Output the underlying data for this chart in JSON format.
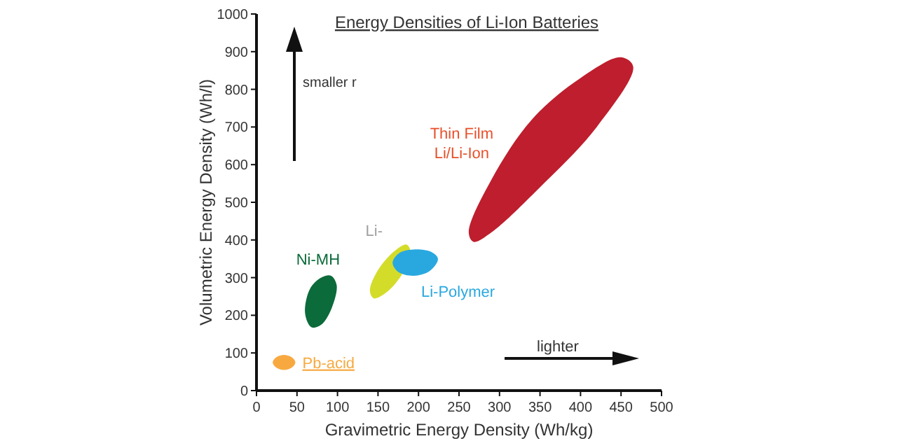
{
  "chart_data": {
    "type": "area",
    "title": "Energy Densities of Li-Ion Batteries",
    "xlabel": "Gravimetric Energy Density (Wh/kg)",
    "ylabel": "Volumetric Energy Density (Wh/l)",
    "xlim": [
      0,
      500
    ],
    "xticks": [
      0,
      50,
      100,
      150,
      200,
      250,
      300,
      350,
      400,
      450,
      500
    ],
    "ylim": [
      0,
      1000
    ],
    "yticks": [
      0,
      100,
      200,
      300,
      400,
      500,
      600,
      700,
      800,
      900,
      1000
    ],
    "grid": false,
    "series": [
      {
        "name": "Pb-acid",
        "color": "#f7a940",
        "x": [
          20,
          24,
          34,
          44,
          48,
          44,
          34,
          24
        ],
        "values": [
          75,
          88,
          95,
          88,
          75,
          62,
          55,
          62
        ]
      },
      {
        "name": "Ni-MH",
        "color": "#0b6b3a",
        "x": [
          60,
          66,
          80,
          92,
          99,
          93,
          80,
          68
        ],
        "values": [
          205,
          270,
          300,
          305,
          280,
          220,
          175,
          168
        ]
      },
      {
        "name": "Li-",
        "color": "#d4dc2a",
        "x": [
          140,
          150,
          170,
          185,
          190,
          180,
          160,
          145
        ],
        "values": [
          265,
          320,
          370,
          388,
          370,
          310,
          260,
          245
        ]
      },
      {
        "name": "Li-Polymer",
        "color": "#29a8e0",
        "x": [
          168,
          176,
          196,
          216,
          224,
          214,
          194,
          175
        ],
        "values": [
          340,
          365,
          375,
          368,
          350,
          318,
          305,
          315
        ]
      },
      {
        "name": "Thin Film Li/Li-Ion",
        "color": "#be1e2d",
        "x": [
          262,
          290,
          340,
          400,
          450,
          465,
          420,
          350,
          290,
          268
        ],
        "values": [
          420,
          560,
          720,
          830,
          885,
          860,
          700,
          540,
          420,
          395
        ]
      }
    ],
    "annotations": [
      "smaller r",
      "lighter"
    ]
  }
}
